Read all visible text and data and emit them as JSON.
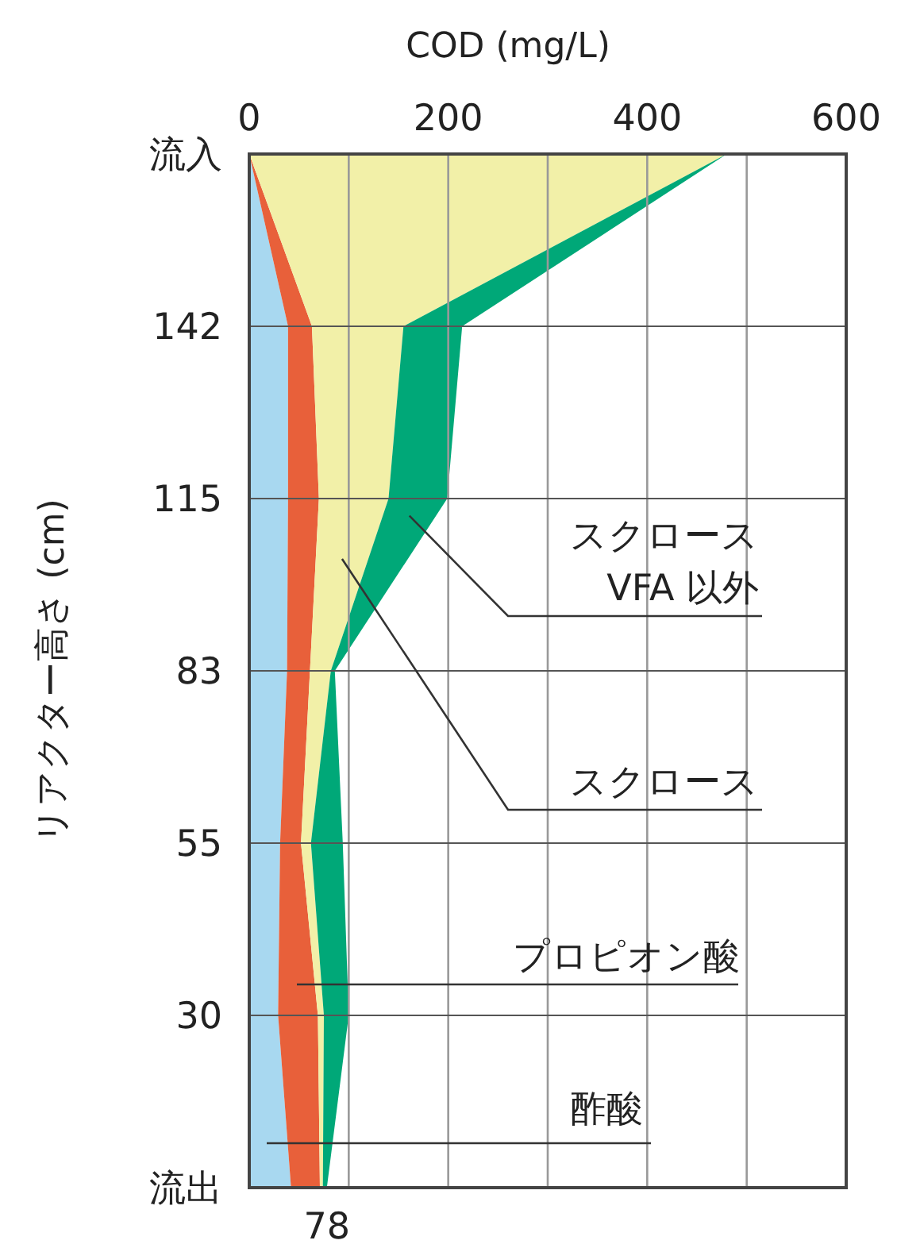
{
  "chart_data": {
    "type": "area",
    "orientation": "horizontal",
    "stacked": true,
    "xlabel": "COD (mg/L)",
    "ylabel": "リアクター高さ (cm)",
    "categories": [
      "流入",
      "142",
      "115",
      "83",
      "55",
      "30",
      "流出"
    ],
    "xlim": [
      0,
      600
    ],
    "xticks": [
      0,
      {
        "value": 100,
        "label": null
      },
      200,
      {
        "value": 300,
        "label": null
      },
      400,
      {
        "value": 500,
        "label": null
      },
      600
    ],
    "grid": true,
    "series": [
      {
        "name": "酢酸",
        "color": "#a8d8f0",
        "values": [
          0,
          39,
          39,
          38,
          31,
          29,
          42
        ]
      },
      {
        "name": "プロピオン酸",
        "color": "#e8603a",
        "values": [
          0,
          24,
          31,
          23,
          21,
          40,
          29
        ]
      },
      {
        "name": "スクロース",
        "color": "#f2f0a8",
        "values": [
          480,
          92,
          70,
          21,
          10,
          6,
          3
        ]
      },
      {
        "name": "スクロース VFA 以外",
        "color": "#00a878",
        "values": [
          0,
          59,
          59,
          4,
          32,
          25,
          4
        ]
      }
    ],
    "annotations": [
      {
        "text": "78",
        "x": 78,
        "y": "流出"
      }
    ]
  }
}
